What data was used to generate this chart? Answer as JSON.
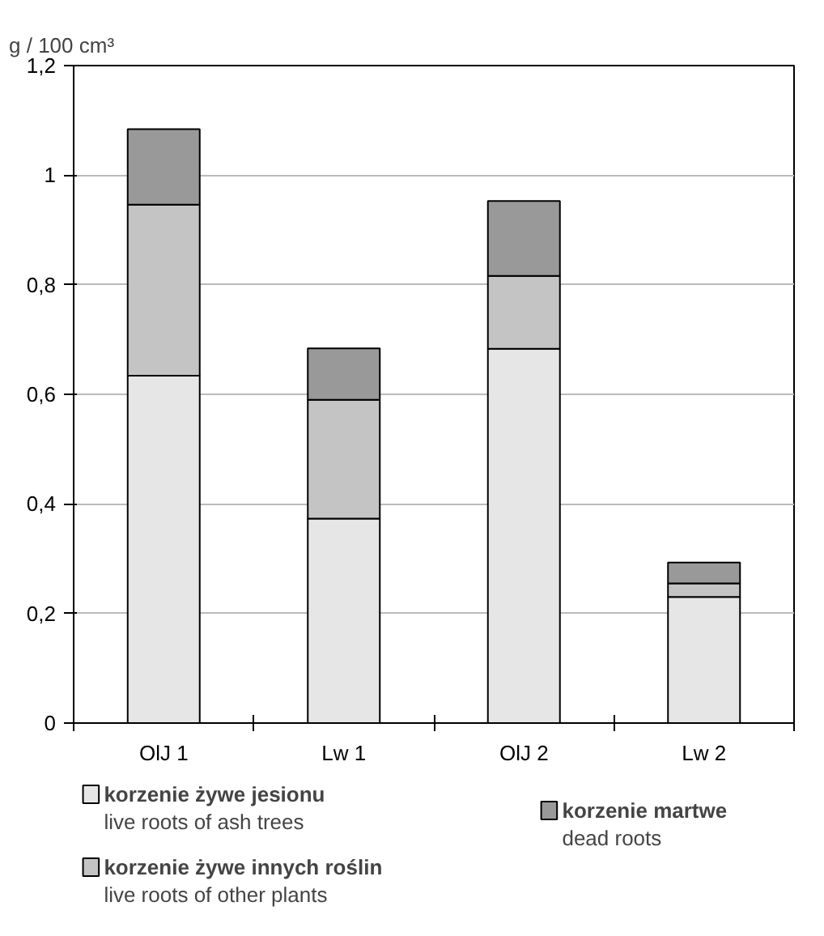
{
  "chart_data": {
    "type": "bar",
    "stacked": true,
    "ylabel": "g / 100 cm³",
    "categories": [
      "OlJ 1",
      "Lw 1",
      "OlJ 2",
      "Lw 2"
    ],
    "series": [
      {
        "name": "korzenie żywe jesionu\nlive roots of ash trees",
        "color": "#e6e6e6",
        "values": [
          0.634,
          0.373,
          0.683,
          0.23
        ]
      },
      {
        "name": "korzenie żywe innych roślin\nlive roots of other plants",
        "color": "#c4c4c4",
        "values": [
          0.312,
          0.217,
          0.133,
          0.025
        ]
      },
      {
        "name": "korzenie martwe\ndead roots",
        "color": "#999999",
        "values": [
          0.138,
          0.094,
          0.137,
          0.038
        ]
      }
    ],
    "ylim": [
      0,
      1.2
    ],
    "yticks": [
      0,
      {
        "value": 0.2,
        "label": "0,2"
      },
      {
        "value": 0.4,
        "label": "0,4"
      },
      {
        "value": 0.6,
        "label": "0,6"
      },
      {
        "value": 0.8,
        "label": "0,8"
      },
      1,
      {
        "value": 1.2,
        "label": "1,2"
      }
    ],
    "grid": "y",
    "legend": "bottom"
  }
}
